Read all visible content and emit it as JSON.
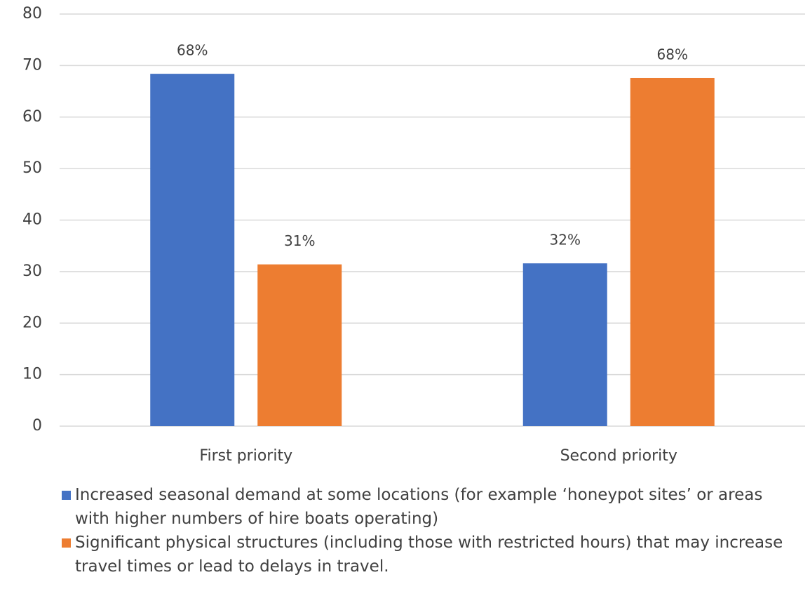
{
  "chart_data": {
    "type": "bar",
    "categories": [
      "First priority",
      "Second priority"
    ],
    "series": [
      {
        "name": "Increased seasonal demand at some locations (for example ‘honeypot sites’ or areas with higher numbers of hire boats operating)",
        "color": "#4472c4",
        "values": [
          68.4,
          31.6
        ],
        "value_labels": [
          "68%",
          "32%"
        ]
      },
      {
        "name": "Significant physical structures (including those with restricted hours) that may increase travel times or lead to delays in travel.",
        "color": "#ed7d31",
        "values": [
          31.4,
          67.6
        ],
        "value_labels": [
          "31%",
          "68%"
        ]
      }
    ],
    "ylim": [
      0,
      80
    ],
    "yticks": [
      0,
      10,
      20,
      30,
      40,
      50,
      60,
      70,
      80
    ],
    "grid": true,
    "legend": "bottom"
  }
}
